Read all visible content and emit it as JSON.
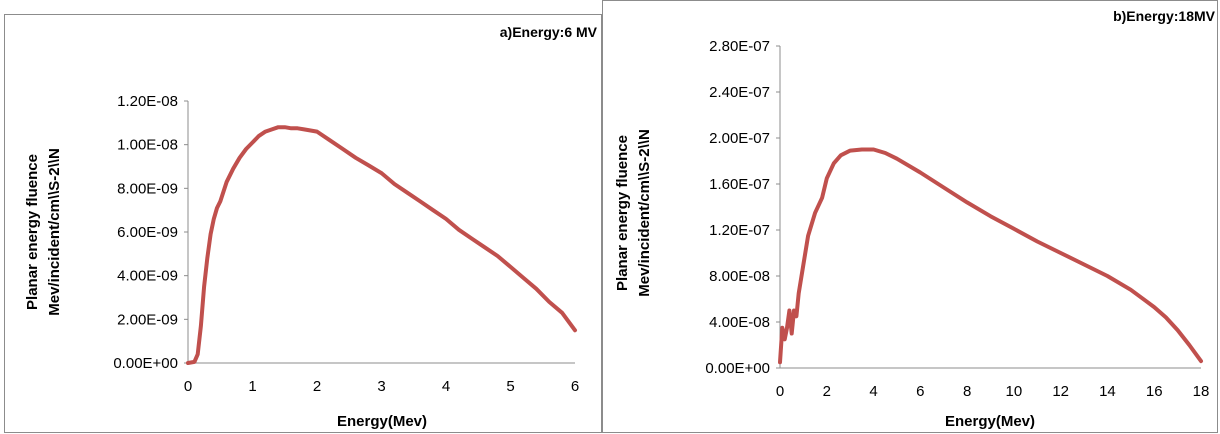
{
  "chart_data": [
    {
      "type": "line",
      "title": "a)Energy:6 MV",
      "xlabel": "Energy(Mev)",
      "ylabel": [
        "Planar energy fluence",
        "Mev/incident/cm\\\\S-2\\\\N"
      ],
      "xlim": [
        0,
        6
      ],
      "ylim": [
        0,
        1.2e-08
      ],
      "xticks": [
        "0",
        "1",
        "2",
        "3",
        "4",
        "5",
        "6"
      ],
      "yticks": [
        "0.00E+00",
        "2.00E-09",
        "4.00E-09",
        "6.00E-09",
        "8.00E-09",
        "1.00E-08",
        "1.20E-08"
      ],
      "grid": false,
      "color": "#c0504d",
      "series": [
        {
          "x": [
            0.0,
            0.1,
            0.15,
            0.2,
            0.25,
            0.3,
            0.35,
            0.4,
            0.45,
            0.5,
            0.6,
            0.7,
            0.8,
            0.9,
            1.0,
            1.1,
            1.2,
            1.3,
            1.4,
            1.5,
            1.6,
            1.7,
            1.8,
            1.9,
            2.0,
            2.2,
            2.4,
            2.6,
            2.8,
            3.0,
            3.2,
            3.4,
            3.6,
            3.8,
            4.0,
            4.2,
            4.4,
            4.6,
            4.8,
            5.0,
            5.2,
            5.4,
            5.6,
            5.8,
            6.0
          ],
          "y": [
            0.0,
            5e-11,
            4e-10,
            1.7e-09,
            3.5e-09,
            4.8e-09,
            5.9e-09,
            6.6e-09,
            7.1e-09,
            7.4e-09,
            8.3e-09,
            8.9e-09,
            9.4e-09,
            9.8e-09,
            1.01e-08,
            1.04e-08,
            1.06e-08,
            1.07e-08,
            1.08e-08,
            1.08e-08,
            1.075e-08,
            1.075e-08,
            1.07e-08,
            1.065e-08,
            1.06e-08,
            1.02e-08,
            9.8e-09,
            9.4e-09,
            9.05e-09,
            8.7e-09,
            8.2e-09,
            7.8e-09,
            7.4e-09,
            7e-09,
            6.6e-09,
            6.1e-09,
            5.7e-09,
            5.3e-09,
            4.9e-09,
            4.4e-09,
            3.9e-09,
            3.4e-09,
            2.8e-09,
            2.3e-09,
            1.5e-09
          ]
        }
      ]
    },
    {
      "type": "line",
      "title": "b)Energy:18MV",
      "xlabel": "Energy(Mev)",
      "ylabel": [
        "Planar energy fluence",
        "Mev/incident/cm\\\\S-2\\\\N"
      ],
      "xlim": [
        0,
        18
      ],
      "ylim": [
        0,
        2.8e-07
      ],
      "xticks": [
        "0",
        "2",
        "4",
        "6",
        "8",
        "10",
        "12",
        "14",
        "16",
        "18"
      ],
      "yticks": [
        "0.00E+00",
        "4.00E-08",
        "8.00E-08",
        "1.20E-07",
        "1.60E-07",
        "2.00E-07",
        "2.40E-07",
        "2.80E-07"
      ],
      "grid": false,
      "color": "#c0504d",
      "series": [
        {
          "x": [
            0.0,
            0.1,
            0.2,
            0.3,
            0.4,
            0.5,
            0.6,
            0.7,
            0.8,
            1.0,
            1.2,
            1.5,
            1.8,
            2.0,
            2.3,
            2.6,
            3.0,
            3.5,
            4.0,
            4.5,
            5.0,
            6.0,
            7.0,
            8.0,
            9.0,
            10.0,
            11.0,
            12.0,
            13.0,
            14.0,
            15.0,
            16.0,
            16.5,
            17.0,
            17.5,
            18.0
          ],
          "y": [
            5e-09,
            3.5e-08,
            2.5e-08,
            3.5e-08,
            5e-08,
            3e-08,
            5e-08,
            4.5e-08,
            6.5e-08,
            9e-08,
            1.15e-07,
            1.35e-07,
            1.48e-07,
            1.65e-07,
            1.78e-07,
            1.85e-07,
            1.89e-07,
            1.9e-07,
            1.9e-07,
            1.87e-07,
            1.82e-07,
            1.7e-07,
            1.57e-07,
            1.44e-07,
            1.32e-07,
            1.21e-07,
            1.1e-07,
            1e-07,
            9e-08,
            8e-08,
            6.8e-08,
            5.3e-08,
            4.4e-08,
            3.3e-08,
            2e-08,
            6e-09
          ]
        }
      ]
    }
  ]
}
